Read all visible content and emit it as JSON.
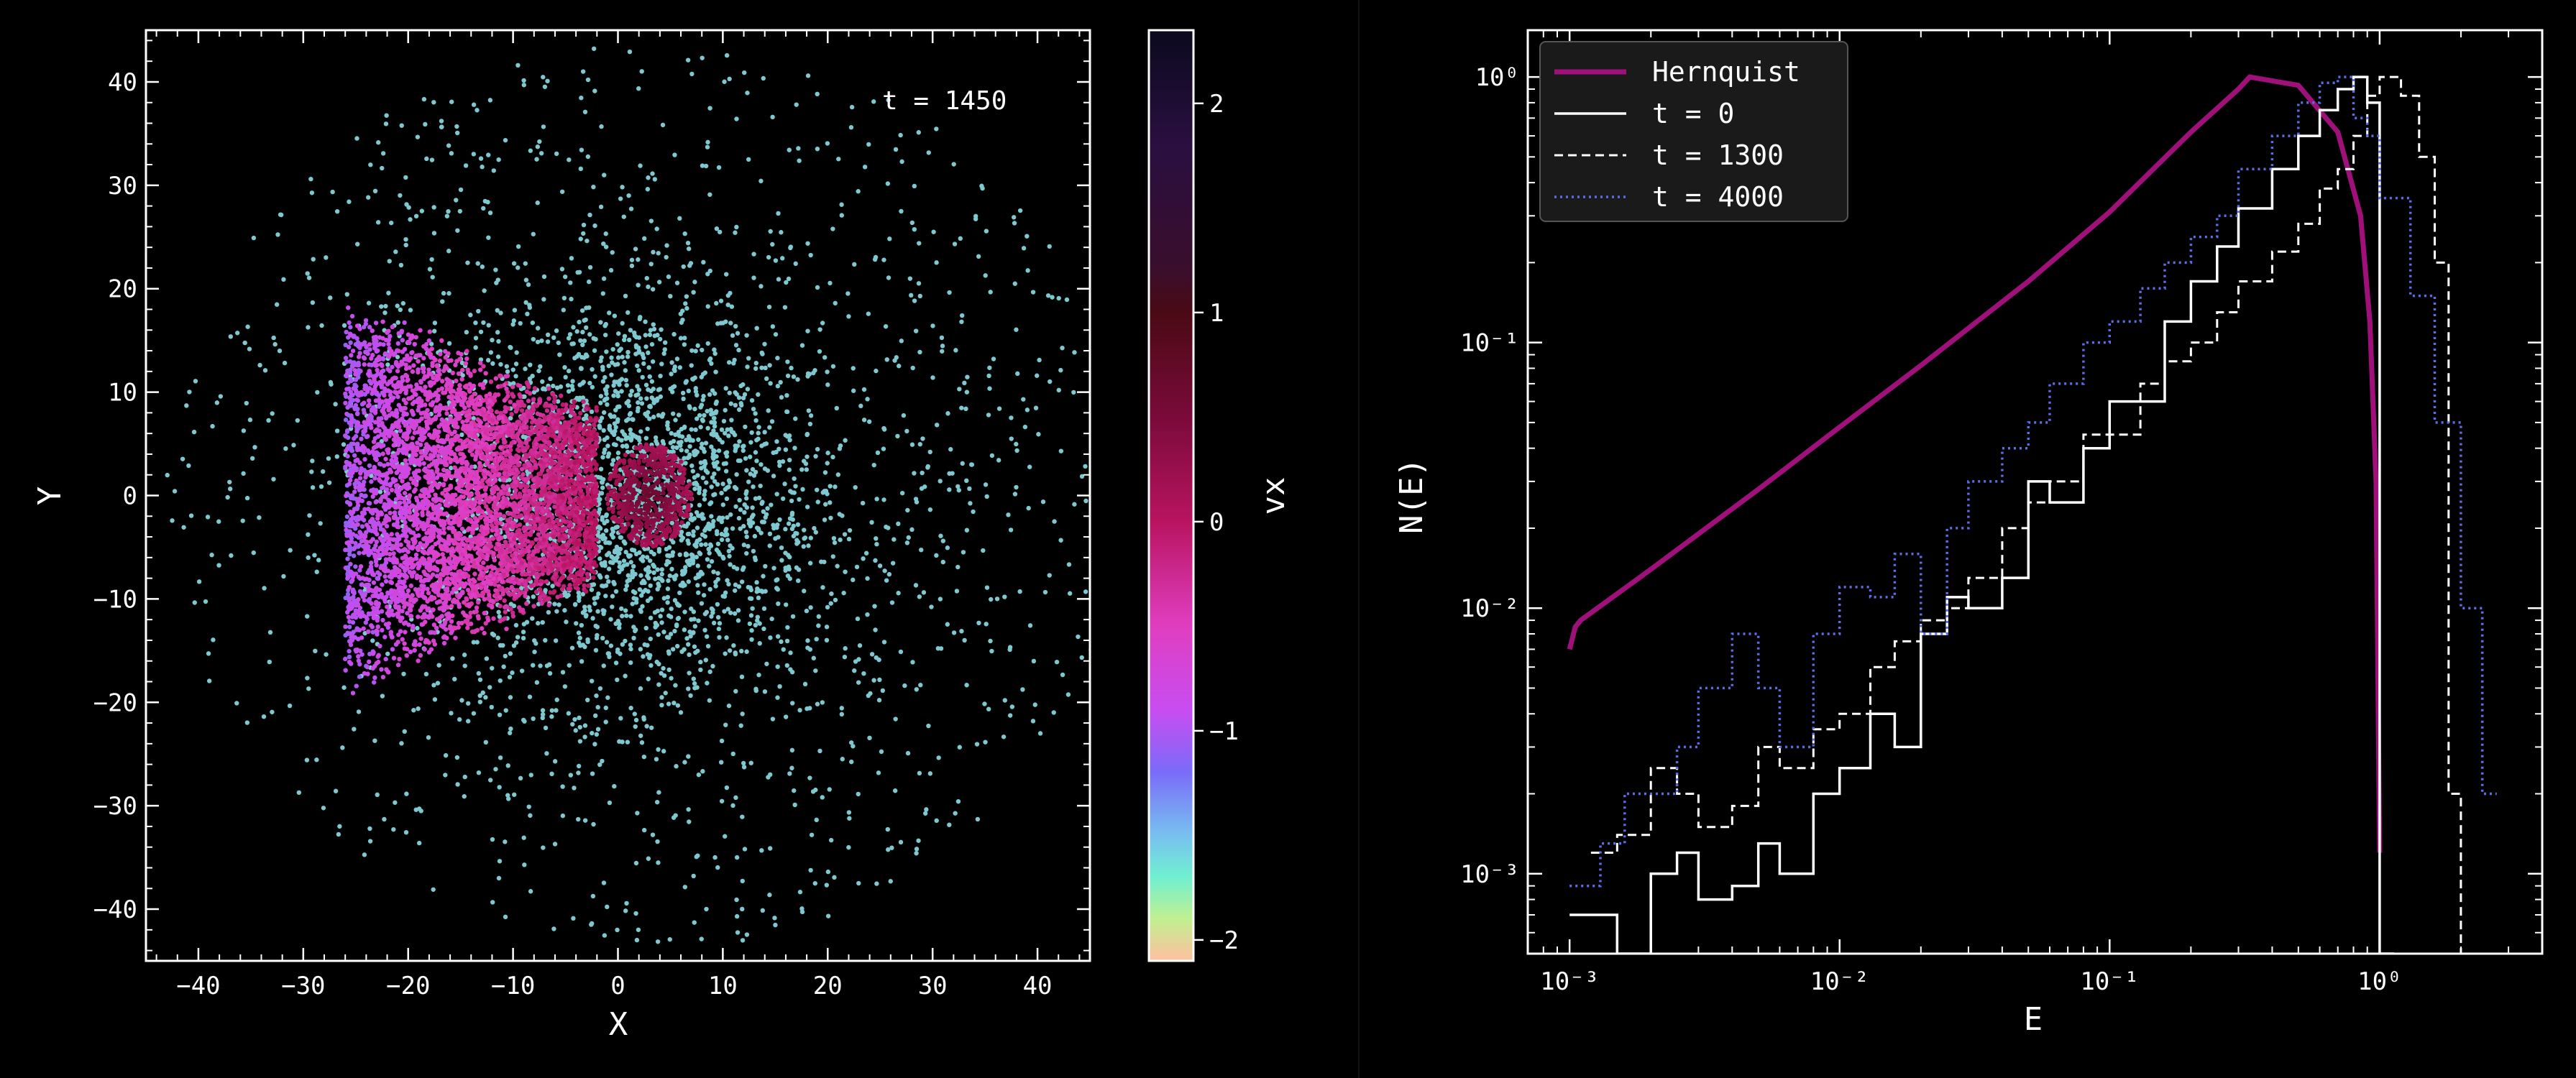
{
  "colors": {
    "background": "#000000",
    "axes": "#ffffff",
    "scatter_outer": "#7ec8d0",
    "hernquist": "#a0107a",
    "t0": "#ffffff",
    "t1300": "#ffffff",
    "t4000": "#5a6ee8",
    "legend_bg": "#1a1a1a"
  },
  "chart_data": [
    {
      "type": "scatter",
      "title": "",
      "xlabel": "X",
      "ylabel": "Y",
      "annotation": "t = 1450",
      "xlim": [
        -45,
        45
      ],
      "ylim": [
        -45,
        45
      ],
      "xticks": [
        -40,
        -30,
        -20,
        -10,
        0,
        10,
        20,
        30,
        40
      ],
      "yticks": [
        -40,
        -30,
        -20,
        -10,
        0,
        10,
        20,
        30,
        40
      ],
      "xtick_labels": [
        "−40",
        "−30",
        "−20",
        "−10",
        "0",
        "10",
        "20",
        "30",
        "40"
      ],
      "ytick_labels": [
        "−40",
        "−30",
        "−20",
        "−10",
        "0",
        "10",
        "20",
        "30",
        "40"
      ],
      "color_variable": "vx",
      "components": [
        {
          "description": "diffuse halo",
          "center": [
            0,
            0
          ],
          "radius": 44,
          "vx": -1.6
        },
        {
          "description": "dense left stream",
          "x_range": [
            -26,
            -2
          ],
          "y_range": [
            -21,
            21
          ],
          "vx_range": [
            -1.0,
            0.0
          ]
        },
        {
          "description": "compact core",
          "center": [
            3,
            0
          ],
          "radius": 5,
          "vx": 0.7
        }
      ],
      "colorbar": {
        "label": "vx",
        "range": [
          -2.1,
          2.35
        ],
        "ticks": [
          2,
          1,
          0,
          -1,
          -2
        ],
        "tick_labels": [
          "2",
          "1",
          "0",
          "−1",
          "−2"
        ],
        "stops": [
          {
            "value": 2.35,
            "color": "#0b0a1e"
          },
          {
            "value": 1.8,
            "color": "#2a0f40"
          },
          {
            "value": 1.2,
            "color": "#3a0e2c"
          },
          {
            "value": 1.0,
            "color": "#4a0a14"
          },
          {
            "value": 0.5,
            "color": "#7a0a3a"
          },
          {
            "value": 0.0,
            "color": "#b81460"
          },
          {
            "value": -0.5,
            "color": "#e03ec0"
          },
          {
            "value": -0.9,
            "color": "#c84cf0"
          },
          {
            "value": -1.2,
            "color": "#7a6cf8"
          },
          {
            "value": -1.5,
            "color": "#78c0f0"
          },
          {
            "value": -1.7,
            "color": "#70f0d0"
          },
          {
            "value": -1.9,
            "color": "#c0f090"
          },
          {
            "value": -2.1,
            "color": "#ffc0a0"
          }
        ]
      }
    },
    {
      "type": "line",
      "title": "",
      "xlabel": "E",
      "ylabel": "N(E)",
      "xscale": "log",
      "yscale": "log",
      "xlim": [
        0.0007,
        4.0
      ],
      "ylim": [
        0.0005,
        1.5
      ],
      "xticks": [
        0.001,
        0.01,
        0.1,
        1
      ],
      "yticks": [
        0.001,
        0.01,
        0.1,
        1
      ],
      "xtick_labels": [
        "10⁻³",
        "10⁻²",
        "10⁻¹",
        "10⁰"
      ],
      "ytick_labels": [
        "10⁻³",
        "10⁻²",
        "10⁻¹",
        "10⁰"
      ],
      "legend_position": "top-left",
      "series": [
        {
          "name": "Hernquist",
          "style": "solid-thick",
          "x": [
            0.001,
            0.00105,
            0.0011,
            0.002,
            0.005,
            0.01,
            0.02,
            0.05,
            0.1,
            0.2,
            0.3,
            0.33,
            0.5,
            0.7,
            0.85,
            0.92,
            0.97,
            1.0
          ],
          "y": [
            0.007,
            0.0085,
            0.009,
            0.014,
            0.028,
            0.048,
            0.082,
            0.17,
            0.31,
            0.62,
            0.9,
            1.0,
            0.93,
            0.62,
            0.3,
            0.12,
            0.03,
            0.0012
          ]
        },
        {
          "name": "t = 0",
          "style": "solid-step",
          "x": [
            0.001,
            0.0012,
            0.0015,
            0.002,
            0.0025,
            0.003,
            0.004,
            0.005,
            0.006,
            0.008,
            0.01,
            0.013,
            0.016,
            0.02,
            0.025,
            0.03,
            0.04,
            0.05,
            0.06,
            0.08,
            0.1,
            0.13,
            0.16,
            0.2,
            0.25,
            0.3,
            0.4,
            0.5,
            0.6,
            0.7,
            0.8,
            0.9,
            1.0
          ],
          "y": [
            0.0007,
            0.0007,
            0.0005,
            0.001,
            0.0012,
            0.0008,
            0.0009,
            0.0013,
            0.001,
            0.002,
            0.0025,
            0.004,
            0.003,
            0.008,
            0.011,
            0.01,
            0.013,
            0.03,
            0.025,
            0.04,
            0.06,
            0.06,
            0.12,
            0.17,
            0.23,
            0.32,
            0.45,
            0.6,
            0.75,
            0.9,
            1.0,
            0.8,
            0.0005
          ]
        },
        {
          "name": "t = 1300",
          "style": "dashed-step",
          "x": [
            0.0012,
            0.0015,
            0.002,
            0.0025,
            0.003,
            0.004,
            0.005,
            0.006,
            0.008,
            0.01,
            0.013,
            0.016,
            0.02,
            0.025,
            0.03,
            0.04,
            0.05,
            0.06,
            0.08,
            0.1,
            0.13,
            0.16,
            0.2,
            0.25,
            0.3,
            0.4,
            0.5,
            0.6,
            0.7,
            0.8,
            0.9,
            1.0,
            1.2,
            1.4,
            1.6,
            1.8,
            2.0
          ],
          "y": [
            0.0012,
            0.0014,
            0.0025,
            0.002,
            0.0015,
            0.0018,
            0.003,
            0.0025,
            0.0035,
            0.004,
            0.006,
            0.0075,
            0.009,
            0.01,
            0.013,
            0.02,
            0.025,
            0.03,
            0.045,
            0.045,
            0.07,
            0.085,
            0.1,
            0.13,
            0.17,
            0.22,
            0.28,
            0.38,
            0.45,
            0.6,
            0.85,
            1.0,
            0.85,
            0.5,
            0.2,
            0.002,
            0.0005
          ]
        },
        {
          "name": "t = 4000",
          "style": "dotted-step",
          "x": [
            0.001,
            0.0013,
            0.0016,
            0.002,
            0.0025,
            0.003,
            0.004,
            0.005,
            0.006,
            0.008,
            0.01,
            0.013,
            0.016,
            0.02,
            0.025,
            0.03,
            0.04,
            0.05,
            0.06,
            0.08,
            0.1,
            0.13,
            0.16,
            0.2,
            0.25,
            0.3,
            0.4,
            0.5,
            0.6,
            0.7,
            0.8,
            0.9,
            1.0,
            1.3,
            1.6,
            2.0,
            2.4
          ],
          "y": [
            0.0009,
            0.0013,
            0.002,
            0.002,
            0.003,
            0.005,
            0.008,
            0.005,
            0.003,
            0.008,
            0.012,
            0.011,
            0.016,
            0.008,
            0.02,
            0.03,
            0.04,
            0.05,
            0.07,
            0.1,
            0.12,
            0.16,
            0.2,
            0.25,
            0.3,
            0.45,
            0.6,
            0.8,
            0.95,
            1.0,
            0.7,
            0.6,
            0.35,
            0.15,
            0.05,
            0.01,
            0.002
          ]
        }
      ]
    }
  ]
}
